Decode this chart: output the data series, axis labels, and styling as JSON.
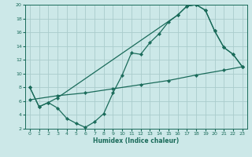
{
  "xlabel": "Humidex (Indice chaleur)",
  "background_color": "#cce8e8",
  "grid_color": "#aacccc",
  "line_color": "#1a6b5a",
  "xlim": [
    -0.5,
    23.5
  ],
  "ylim": [
    2,
    20
  ],
  "xticks": [
    0,
    1,
    2,
    3,
    4,
    5,
    6,
    7,
    8,
    9,
    10,
    11,
    12,
    13,
    14,
    15,
    16,
    17,
    18,
    19,
    20,
    21,
    22,
    23
  ],
  "yticks": [
    2,
    4,
    6,
    8,
    10,
    12,
    14,
    16,
    18,
    20
  ],
  "curveA_x": [
    0,
    1,
    2,
    3,
    4,
    5,
    6,
    7,
    8,
    9,
    10,
    11,
    12,
    13,
    14,
    15,
    16,
    17,
    18,
    19,
    20,
    21,
    22,
    23
  ],
  "curveA_y": [
    8.0,
    5.2,
    5.8,
    5.0,
    3.5,
    2.8,
    2.2,
    3.0,
    4.2,
    7.2,
    9.8,
    13.0,
    12.8,
    14.5,
    15.8,
    17.5,
    18.5,
    19.8,
    20.0,
    19.2,
    16.2,
    13.8,
    12.8,
    11.0
  ],
  "curveB_x": [
    0,
    1,
    2,
    3,
    16,
    17,
    18,
    19,
    20,
    21,
    22,
    23
  ],
  "curveB_y": [
    8.0,
    5.2,
    5.8,
    6.5,
    18.5,
    19.8,
    20.0,
    19.2,
    16.2,
    13.8,
    12.8,
    11.0
  ],
  "curveC_x": [
    0,
    3,
    6,
    9,
    12,
    15,
    18,
    21,
    23
  ],
  "curveC_y": [
    6.2,
    6.8,
    7.2,
    7.8,
    8.4,
    9.0,
    9.8,
    10.5,
    11.0
  ]
}
